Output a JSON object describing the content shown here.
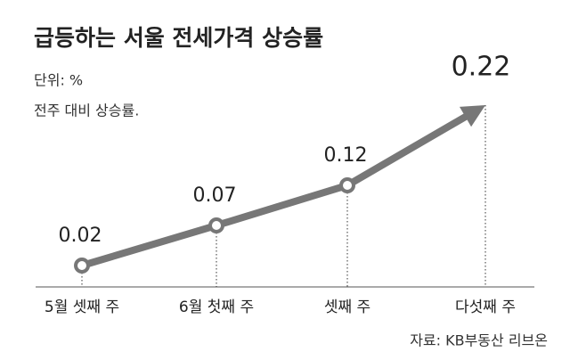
{
  "chart_data": {
    "type": "line",
    "title": "급등하는 서울 전세가격 상승률",
    "subtitle": [
      "단위: %",
      "전주 대비 상승률."
    ],
    "source": "자료: KB부동산 리브온",
    "categories": [
      "5월 셋째 주",
      "6월 첫째 주",
      "셋째 주",
      "다섯째 주"
    ],
    "values": [
      0.02,
      0.07,
      0.12,
      0.22
    ],
    "color": "#777777"
  }
}
